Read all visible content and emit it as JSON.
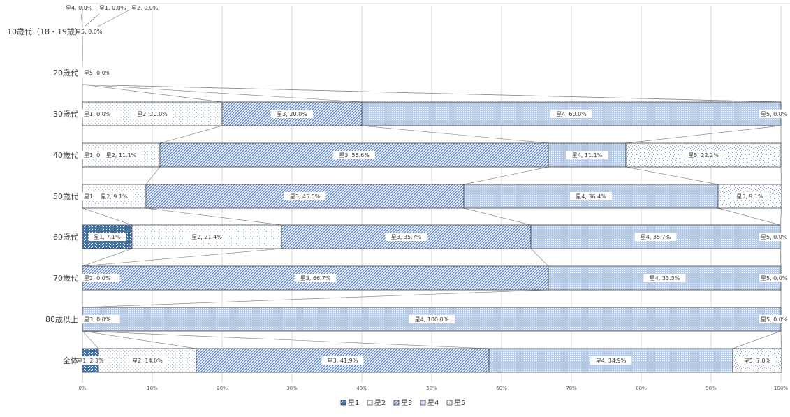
{
  "chart_data": {
    "type": "bar",
    "orientation": "horizontal",
    "stacked": "percent",
    "categories": [
      "10歳代（18・19歳）",
      "20歳代",
      "30歳代",
      "40歳代",
      "50歳代",
      "60歳代",
      "70歳代",
      "80歳以上",
      "全体"
    ],
    "series": [
      {
        "name": "星1",
        "values": [
          0.0,
          0.0,
          0.0,
          0.0,
          0.0,
          7.1,
          0.0,
          0.0,
          2.3
        ],
        "pattern": "dense-dots",
        "color": "#3f6fb6"
      },
      {
        "name": "星2",
        "values": [
          0.0,
          0.0,
          20.0,
          11.1,
          9.1,
          21.4,
          0.0,
          0.0,
          14.0
        ],
        "pattern": "sparse-dots",
        "color": "#9fbde3"
      },
      {
        "name": "星3",
        "values": [
          0.0,
          0.0,
          20.0,
          55.6,
          45.5,
          35.7,
          66.7,
          0.0,
          41.9
        ],
        "pattern": "diagonal-lines",
        "color": "#5b86c4"
      },
      {
        "name": "星4",
        "values": [
          0.0,
          0.0,
          60.0,
          11.1,
          36.4,
          35.7,
          33.3,
          100.0,
          34.9
        ],
        "pattern": "fine-dots",
        "color": "#b8cde9"
      },
      {
        "name": "星5",
        "values": [
          0.0,
          0.0,
          0.0,
          22.2,
          9.1,
          0.0,
          0.0,
          0.0,
          7.0
        ],
        "pattern": "scatter-dots",
        "color": "#8fb0db"
      }
    ],
    "data_labels": [
      [
        "星4, 0.0%",
        "星1, 0.0%",
        "星2, 0.0%",
        "星5, 0.0%"
      ],
      [
        "星5, 0.0%"
      ],
      [
        "星1, 0.0%",
        "星2, 20.0%",
        "星3, 20.0%",
        "星4, 60.0%",
        "星5, 0.0%"
      ],
      [
        "星1, 0.0%",
        "星2, 11.1%",
        "星3, 55.6%",
        "星4, 11.1%",
        "星5, 22.2%"
      ],
      [
        "星1, 0.0%",
        "星2, 9.1%",
        "星3, 45.5%",
        "星4, 36.4%",
        "星5, 9.1%"
      ],
      [
        "星1, 7.1%",
        "星2, 21.4%",
        "星3, 35.7%",
        "星4, 35.7%",
        "星5, 0.0%"
      ],
      [
        "星2, 0.0%",
        "星3, 66.7%",
        "星4, 33.3%",
        "星5, 0.0%"
      ],
      [
        "星3, 0.0%",
        "星4, 100.0%",
        "星5, 0.0%"
      ],
      [
        "星1, 2.3%",
        "星2, 14.0%",
        "星3, 41.9%",
        "星4, 34.9%",
        "星5, 7.0%"
      ]
    ],
    "x_ticks": [
      "0%",
      "10%",
      "20%",
      "30%",
      "40%",
      "50%",
      "60%",
      "70%",
      "80%",
      "90%",
      "100%"
    ],
    "xlim": [
      0,
      100
    ],
    "grid": true,
    "series_lines": true,
    "legend_position": "bottom",
    "title": "",
    "xlabel": "",
    "ylabel": ""
  }
}
